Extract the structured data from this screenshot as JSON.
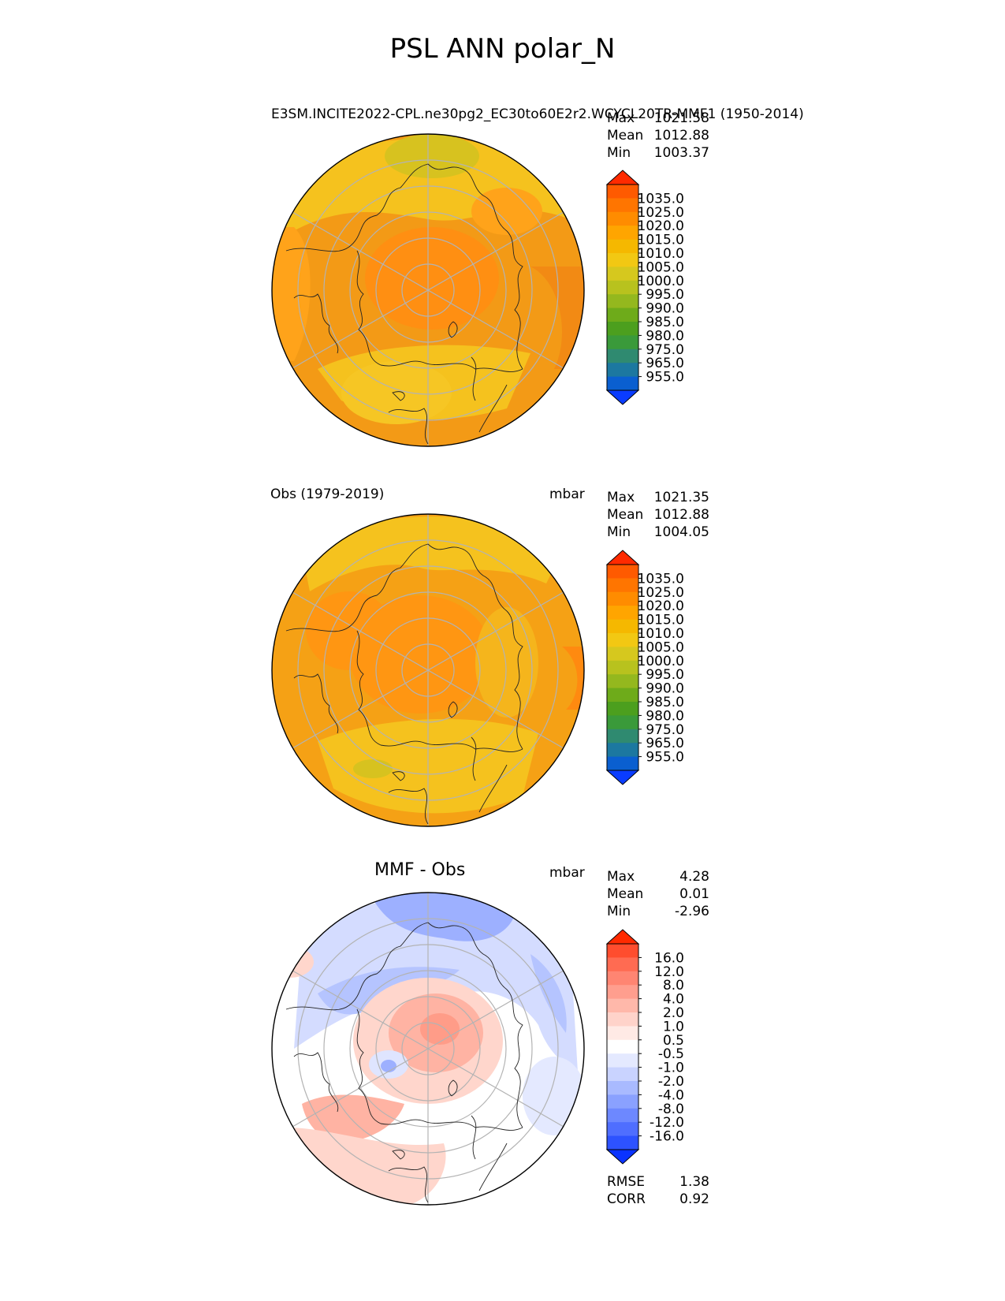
{
  "figure": {
    "title": "PSL ANN polar_N"
  },
  "panels": [
    {
      "left_title": "",
      "center_title": "",
      "right_title": "E3SM.INCITE2022-CPL.ne30pg2_EC30to60E2r2.WCYCL20TR-MMF1 (1950-2014)",
      "units": "mbar",
      "stats": [
        {
          "label": "Max",
          "value": "1021.58"
        },
        {
          "label": "Mean",
          "value": "1012.88"
        },
        {
          "label": "Min",
          "value": "1003.37"
        }
      ],
      "colorbar": {
        "ticks": [
          "1035.0",
          "1025.0",
          "1020.0",
          "1015.0",
          "1010.0",
          "1005.0",
          "1000.0",
          "995.0",
          "990.0",
          "985.0",
          "980.0",
          "975.0",
          "965.0",
          "955.0"
        ],
        "colors": [
          "#ff2a00",
          "#ff5a00",
          "#ff7500",
          "#ff8c00",
          "#ffa500",
          "#f5b800",
          "#f2c813",
          "#d6c81e",
          "#b8c21e",
          "#94b81e",
          "#6eab1a",
          "#4c9f1e",
          "#3a9a3a",
          "#2f8a70",
          "#1c78a0",
          "#0a5fd0",
          "#0a3cff"
        ]
      },
      "bottom_stats": []
    },
    {
      "left_title": "Obs (1979-2019)",
      "center_title": "",
      "right_title": "mbar",
      "units": "mbar",
      "stats": [
        {
          "label": "Max",
          "value": "1021.35"
        },
        {
          "label": "Mean",
          "value": "1012.88"
        },
        {
          "label": "Min",
          "value": "1004.05"
        }
      ],
      "colorbar": {
        "ticks": [
          "1035.0",
          "1025.0",
          "1020.0",
          "1015.0",
          "1010.0",
          "1005.0",
          "1000.0",
          "995.0",
          "990.0",
          "985.0",
          "980.0",
          "975.0",
          "965.0",
          "955.0"
        ],
        "colors": [
          "#ff2a00",
          "#ff5a00",
          "#ff7500",
          "#ff8c00",
          "#ffa500",
          "#f5b800",
          "#f2c813",
          "#d6c81e",
          "#b8c21e",
          "#94b81e",
          "#6eab1a",
          "#4c9f1e",
          "#3a9a3a",
          "#2f8a70",
          "#1c78a0",
          "#0a5fd0",
          "#0a3cff"
        ]
      },
      "bottom_stats": []
    },
    {
      "left_title": "",
      "center_title": "MMF - Obs",
      "right_title": "mbar",
      "units": "mbar",
      "stats": [
        {
          "label": "Max",
          "value": "4.28"
        },
        {
          "label": "Mean",
          "value": "0.01"
        },
        {
          "label": "Min",
          "value": "-2.96"
        }
      ],
      "colorbar": {
        "ticks": [
          "16.0",
          "12.0",
          "8.0",
          "4.0",
          "2.0",
          "1.0",
          "0.5",
          "-0.5",
          "-1.0",
          "-2.0",
          "-4.0",
          "-8.0",
          "-12.0",
          "-16.0"
        ],
        "colors": [
          "#ff2a00",
          "#ff4d2e",
          "#ff6b52",
          "#ff8572",
          "#ff9e8e",
          "#ffb8aa",
          "#ffd3ca",
          "#ffeae5",
          "#ffffff",
          "#e4e9ff",
          "#c9d3ff",
          "#a9baff",
          "#8aa1ff",
          "#6d88ff",
          "#4f6eff",
          "#2d52ff",
          "#0a33ff"
        ]
      },
      "bottom_stats": [
        {
          "label": "RMSE",
          "value": "1.38"
        },
        {
          "label": "CORR",
          "value": "0.92"
        }
      ]
    }
  ],
  "chart_data": [
    {
      "type": "heatmap",
      "projection": "north polar stereographic",
      "variable": "PSL",
      "season": "ANN",
      "min": 1003.37,
      "mean": 1012.88,
      "max": 1021.58,
      "units": "mbar"
    },
    {
      "type": "heatmap",
      "projection": "north polar stereographic",
      "variable": "PSL",
      "season": "ANN",
      "min": 1004.05,
      "mean": 1012.88,
      "max": 1021.35,
      "units": "mbar"
    },
    {
      "type": "heatmap",
      "projection": "north polar stereographic",
      "variable": "PSL difference",
      "season": "ANN",
      "min": -2.96,
      "mean": 0.01,
      "max": 4.28,
      "rmse": 1.38,
      "corr": 0.92,
      "units": "mbar"
    }
  ]
}
